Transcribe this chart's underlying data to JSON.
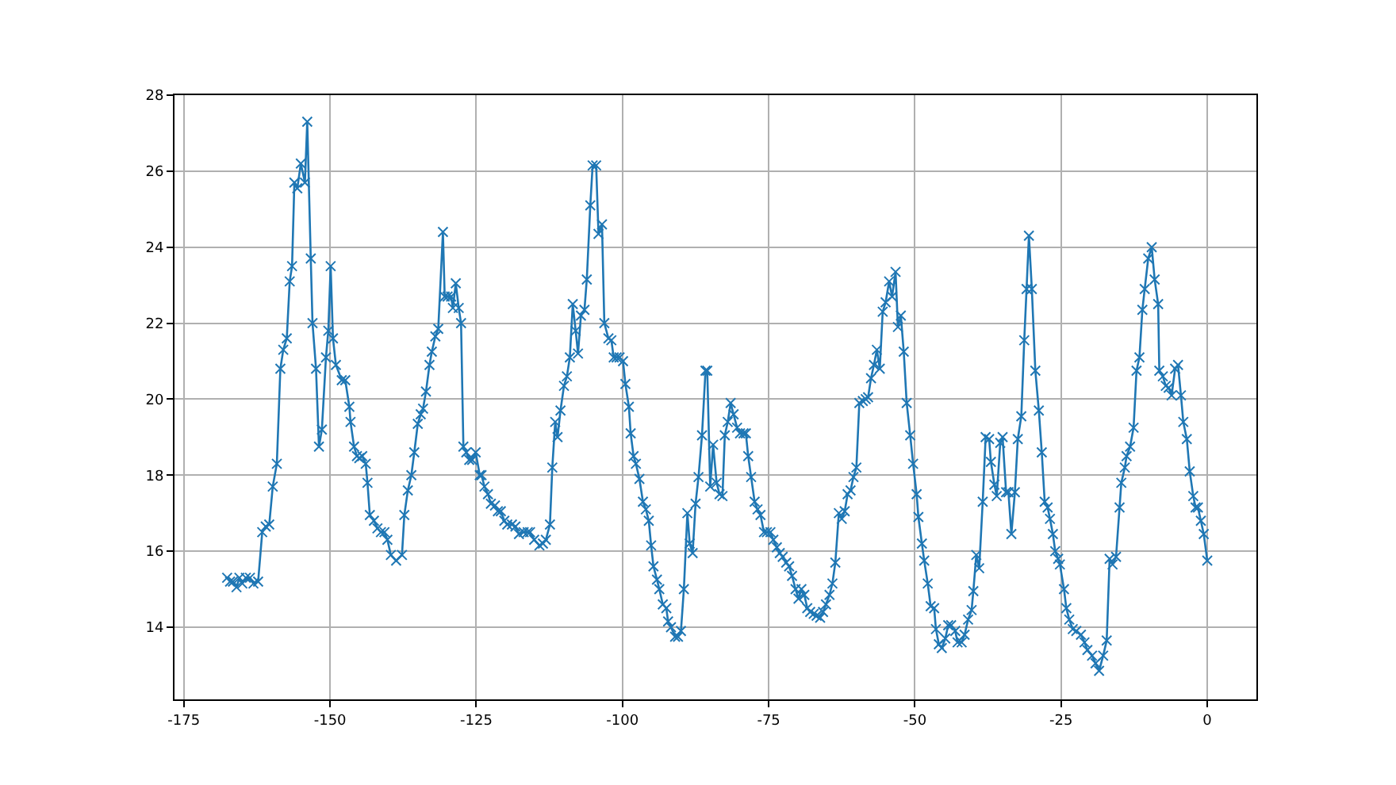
{
  "chart_data": {
    "type": "line",
    "color": "#1f77b4",
    "marker": "cross",
    "line_style": "solid",
    "grid": true,
    "x": [
      -167.6,
      -167.1,
      -166.6,
      -166.0,
      -165.5,
      -165.0,
      -164.4,
      -163.7,
      -163.1,
      -162.3,
      -161.6,
      -161.0,
      -160.4,
      -159.8,
      -159.1,
      -158.5,
      -158.0,
      -157.4,
      -156.9,
      -156.5,
      -156.1,
      -155.6,
      -155.0,
      -154.3,
      -153.9,
      -153.3,
      -153.0,
      -152.4,
      -151.9,
      -151.4,
      -150.7,
      -150.3,
      -149.9,
      -149.5,
      -149.0,
      -148.0,
      -147.4,
      -146.7,
      -146.5,
      -145.9,
      -145.4,
      -145.0,
      -144.5,
      -143.9,
      -143.6,
      -143.2,
      -142.5,
      -141.9,
      -141.3,
      -140.7,
      -140.2,
      -139.6,
      -138.7,
      -137.7,
      -137.3,
      -136.7,
      -136.1,
      -135.6,
      -135.0,
      -134.5,
      -134.1,
      -133.6,
      -133.0,
      -132.6,
      -132.0,
      -131.5,
      -130.7,
      -130.4,
      -129.9,
      -129.3,
      -129.0,
      -128.5,
      -128.0,
      -127.6,
      -127.2,
      -126.7,
      -126.2,
      -125.7,
      -125.1,
      -124.4,
      -124.1,
      -123.6,
      -123.0,
      -122.5,
      -121.8,
      -121.3,
      -120.8,
      -120.2,
      -119.7,
      -118.9,
      -118.3,
      -117.7,
      -116.9,
      -116.2,
      -115.8,
      -115.1,
      -114.2,
      -113.6,
      -113.1,
      -112.4,
      -112.0,
      -111.5,
      -111.1,
      -110.6,
      -110.0,
      -109.5,
      -109.0,
      -108.5,
      -108.0,
      -107.6,
      -107.1,
      -106.5,
      -106.1,
      -105.5,
      -105.1,
      -104.5,
      -104.1,
      -103.5,
      -103.1,
      -102.4,
      -101.9,
      -101.5,
      -101.0,
      -100.5,
      -99.9,
      -99.5,
      -98.9,
      -98.6,
      -98.1,
      -97.7,
      -97.1,
      -96.5,
      -96.0,
      -95.5,
      -95.1,
      -94.7,
      -94.1,
      -93.7,
      -93.1,
      -92.5,
      -92.2,
      -91.7,
      -91.0,
      -90.5,
      -90.0,
      -89.5,
      -88.9,
      -88.5,
      -88.0,
      -87.5,
      -87.0,
      -86.4,
      -85.8,
      -85.5,
      -85.0,
      -84.5,
      -83.9,
      -83.4,
      -82.9,
      -82.5,
      -82.0,
      -81.5,
      -81.0,
      -80.4,
      -79.9,
      -79.3,
      -78.9,
      -78.5,
      -78.0,
      -77.4,
      -76.9,
      -76.4,
      -75.8,
      -75.3,
      -74.7,
      -74.2,
      -73.6,
      -73.1,
      -72.6,
      -72.0,
      -71.5,
      -71.0,
      -70.4,
      -69.9,
      -69.4,
      -68.9,
      -68.4,
      -67.9,
      -67.3,
      -66.8,
      -66.2,
      -65.7,
      -65.2,
      -64.6,
      -64.1,
      -63.6,
      -63.0,
      -62.5,
      -62.0,
      -61.5,
      -61.0,
      -60.5,
      -60.0,
      -59.5,
      -58.9,
      -58.4,
      -58.0,
      -57.5,
      -57.0,
      -56.5,
      -56.0,
      -55.5,
      -55.0,
      -54.4,
      -53.9,
      -53.3,
      -52.9,
      -52.4,
      -51.9,
      -51.4,
      -50.8,
      -50.3,
      -49.7,
      -49.4,
      -48.8,
      -48.4,
      -47.8,
      -47.3,
      -46.7,
      -46.4,
      -45.9,
      -45.4,
      -44.8,
      -44.3,
      -43.8,
      -43.1,
      -42.7,
      -42.0,
      -41.5,
      -40.9,
      -40.3,
      -40.0,
      -39.5,
      -39.0,
      -38.4,
      -37.9,
      -37.3,
      -37.0,
      -36.4,
      -36.0,
      -35.4,
      -35.0,
      -34.4,
      -34.0,
      -33.5,
      -32.9,
      -32.4,
      -31.8,
      -31.3,
      -30.9,
      -30.5,
      -30.0,
      -29.4,
      -28.8,
      -28.3,
      -27.8,
      -27.3,
      -26.9,
      -26.4,
      -26.0,
      -25.5,
      -25.2,
      -24.5,
      -24.1,
      -23.6,
      -23.0,
      -22.4,
      -21.6,
      -21.0,
      -20.5,
      -19.7,
      -19.1,
      -18.5,
      -17.8,
      -17.2,
      -16.7,
      -16.2,
      -15.6,
      -15.0,
      -14.7,
      -14.1,
      -13.8,
      -13.2,
      -12.6,
      -12.1,
      -11.6,
      -11.1,
      -10.7,
      -10.1,
      -9.5,
      -9.0,
      -8.4,
      -8.2,
      -7.6,
      -7.1,
      -6.6,
      -6.1,
      -5.5,
      -5.0,
      -4.5,
      -4.1,
      -3.5,
      -3.0,
      -2.4,
      -2.0,
      -1.6,
      -1.1,
      -0.6,
      0.0
    ],
    "values": [
      15.3,
      15.2,
      15.2,
      15.05,
      15.3,
      15.15,
      15.3,
      15.3,
      15.15,
      15.2,
      16.5,
      16.65,
      16.7,
      17.7,
      18.3,
      20.8,
      21.3,
      21.6,
      23.1,
      23.5,
      25.7,
      25.55,
      26.2,
      25.7,
      27.3,
      23.7,
      22.0,
      20.8,
      18.75,
      19.2,
      21.1,
      21.8,
      23.5,
      21.6,
      20.9,
      20.5,
      20.5,
      19.8,
      19.4,
      18.75,
      18.5,
      18.45,
      18.5,
      18.3,
      17.8,
      16.95,
      16.8,
      16.6,
      16.5,
      16.5,
      16.3,
      15.9,
      15.75,
      15.9,
      16.95,
      17.6,
      18.0,
      18.6,
      19.35,
      19.6,
      19.75,
      20.2,
      20.9,
      21.25,
      21.65,
      21.85,
      24.4,
      22.7,
      22.7,
      22.7,
      22.4,
      23.05,
      22.4,
      22.0,
      18.75,
      18.6,
      18.4,
      18.4,
      18.6,
      18.0,
      18.0,
      17.7,
      17.5,
      17.25,
      17.2,
      17.05,
      17.05,
      16.8,
      16.7,
      16.7,
      16.65,
      16.45,
      16.5,
      16.5,
      16.5,
      16.3,
      16.15,
      16.2,
      16.3,
      16.7,
      18.2,
      19.4,
      19.0,
      19.7,
      20.35,
      20.6,
      21.1,
      22.5,
      21.8,
      21.2,
      22.2,
      22.35,
      23.15,
      25.1,
      26.15,
      26.15,
      24.35,
      24.6,
      22.0,
      21.6,
      21.55,
      21.1,
      21.1,
      21.1,
      21.0,
      20.4,
      19.8,
      19.1,
      18.5,
      18.3,
      17.9,
      17.3,
      17.1,
      16.8,
      16.15,
      15.6,
      15.25,
      15.0,
      14.6,
      14.5,
      14.15,
      14.0,
      13.75,
      13.75,
      13.9,
      15.0,
      17.0,
      16.2,
      15.95,
      17.25,
      17.95,
      19.05,
      20.75,
      20.75,
      17.7,
      18.8,
      17.8,
      17.5,
      17.45,
      19.05,
      19.4,
      19.9,
      19.6,
      19.25,
      19.1,
      19.1,
      19.1,
      18.5,
      17.95,
      17.3,
      17.1,
      16.95,
      16.5,
      16.5,
      16.5,
      16.3,
      16.1,
      15.95,
      15.85,
      15.7,
      15.6,
      15.35,
      15.0,
      14.75,
      15.0,
      14.85,
      14.5,
      14.4,
      14.35,
      14.3,
      14.25,
      14.4,
      14.6,
      14.85,
      15.15,
      15.7,
      17.0,
      16.85,
      17.05,
      17.5,
      17.6,
      17.95,
      18.2,
      19.9,
      19.95,
      20.0,
      20.05,
      20.55,
      20.9,
      21.3,
      20.8,
      22.3,
      22.55,
      23.1,
      22.7,
      23.35,
      21.9,
      22.2,
      21.25,
      19.9,
      19.05,
      18.3,
      17.5,
      16.9,
      16.2,
      15.75,
      15.15,
      14.55,
      14.5,
      13.95,
      13.55,
      13.45,
      13.7,
      14.05,
      14.05,
      13.9,
      13.6,
      13.6,
      13.8,
      14.2,
      14.45,
      14.95,
      15.9,
      15.55,
      17.3,
      19.0,
      18.95,
      18.35,
      17.75,
      17.45,
      18.85,
      19.0,
      17.55,
      17.55,
      16.45,
      17.55,
      18.95,
      19.55,
      21.55,
      22.9,
      24.3,
      22.9,
      20.75,
      19.7,
      18.6,
      17.3,
      17.15,
      16.85,
      16.45,
      16.0,
      15.8,
      15.65,
      15.0,
      14.5,
      14.2,
      13.95,
      13.9,
      13.8,
      13.6,
      13.4,
      13.25,
      13.05,
      12.85,
      13.25,
      13.65,
      15.8,
      15.65,
      15.85,
      17.15,
      17.8,
      18.2,
      18.5,
      18.75,
      19.25,
      20.75,
      21.1,
      22.35,
      22.9,
      23.7,
      24.0,
      23.15,
      22.5,
      20.75,
      20.6,
      20.35,
      20.3,
      20.1,
      20.8,
      20.9,
      20.1,
      19.4,
      18.95,
      18.1,
      17.45,
      17.15,
      17.15,
      16.8,
      16.45,
      15.75
    ],
    "xlim": [
      -176.6,
      8.4
    ],
    "xticks": [
      -175,
      -150,
      -125,
      -100,
      -75,
      -50,
      -25,
      0
    ],
    "ylim": [
      12.1,
      28
    ],
    "yticks": [
      14,
      16,
      18,
      20,
      22,
      24,
      26,
      28
    ]
  }
}
